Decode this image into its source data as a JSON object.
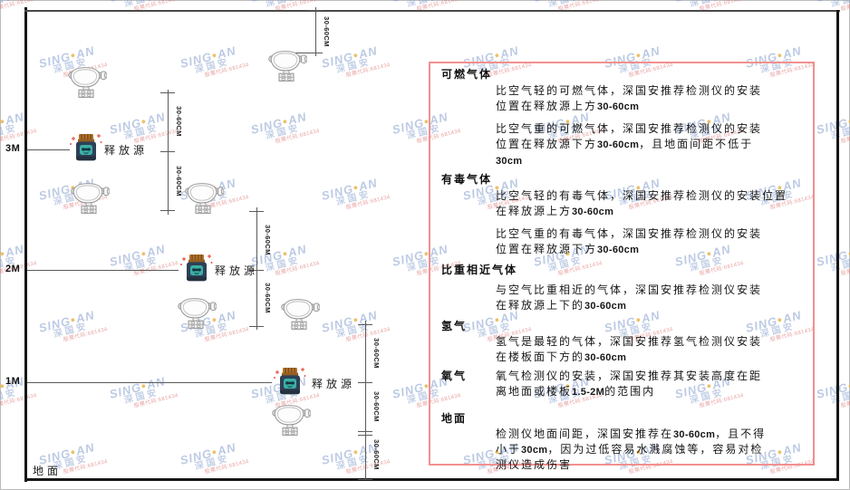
{
  "watermark": {
    "brand_prefix": "SING",
    "brand_dot": "●",
    "brand_suffix": "AN",
    "company": "深国安",
    "stock_line": "股票代码:681434"
  },
  "colors": {
    "panel_border": "#f29090",
    "line": "#5a5a5a",
    "wall": "#161616",
    "release_lid": "#b5722a",
    "release_lid_dark": "#7d4e1c",
    "release_body": "#2e4057",
    "release_face": "#3bb0a4",
    "sparkle_red": "#e2574d",
    "detector_stroke": "#9a9a9a",
    "watermark_blue": "#7a96c9",
    "watermark_red": "#db6c6c"
  },
  "diagram": {
    "ground_label": "地面",
    "release_source_label": "释放源",
    "dim_label": "30-60CM",
    "axis_marks": [
      "3M",
      "2M",
      "1M"
    ]
  },
  "panel": {
    "sections": [
      {
        "id": "combustible-gas",
        "heading": "可燃气体",
        "paragraphs": [
          [
            "比空气轻的可燃气体，深国安推荐检测仪的安装",
            "位置在释放源上方30-60cm"
          ],
          [
            "比空气重的可燃气体，深国安推荐检测仪的安装",
            "位置在释放源下方30-60cm，且地面间距不低于",
            "30cm"
          ]
        ]
      },
      {
        "id": "toxic-gas",
        "heading": "有毒气体",
        "paragraphs": [
          [
            "比空气轻的有毒气体，深国安推荐检测仪的安装位置",
            "在释放源上方30-60cm"
          ],
          [
            "比空气重的有毒气体，深国安推荐检测仪的安装",
            "位置在释放源下方30-60cm"
          ]
        ]
      },
      {
        "id": "similar-density-gas",
        "heading": "比重相近气体",
        "paragraphs": [
          [
            "与空气比重相近的气体，深国安推荐检测仪安装",
            "在释放源上下的30-60cm"
          ]
        ]
      },
      {
        "id": "hydrogen",
        "heading": "氢气",
        "paragraphs": [
          [
            "氢气是最轻的气体，深国安推荐氢气检测仪安装",
            "在楼板面下方的30-60cm"
          ]
        ]
      },
      {
        "id": "oxygen",
        "heading": "氧气",
        "inline": true,
        "paragraphs": [
          [
            "氧气检测仪的安装，深国安推荐其安装高度在距",
            "离地面或楼板1.5-2M的范围内"
          ]
        ]
      },
      {
        "id": "ground",
        "heading": "地面",
        "paragraphs": [
          [
            "检测仪地面间距，深国安推荐在30-60cm，且不得",
            "小于30cm，因为过低容易水溅腐蚀等，容易对检",
            "测仪造成伤害"
          ]
        ]
      }
    ]
  }
}
